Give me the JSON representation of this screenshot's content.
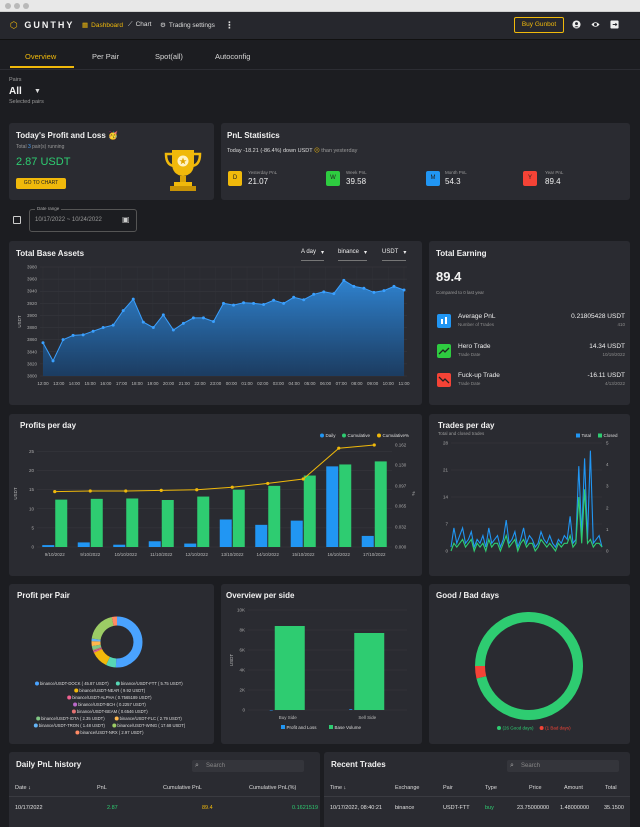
{
  "header": {
    "logo": "GUNTHY",
    "nav": [
      {
        "label": "Dashboard",
        "icon": "grid-icon"
      },
      {
        "label": "Chart",
        "icon": "chart-line-icon"
      },
      {
        "label": "Trading settings",
        "icon": "gear-icon"
      }
    ],
    "buy_label": "Buy Gunbot",
    "icons": [
      "user-icon",
      "eye-icon",
      "logout-icon"
    ]
  },
  "tabs": [
    "Overview",
    "Per Pair",
    "Spot(all)",
    "Autoconfig"
  ],
  "pairs": {
    "label": "Pairs",
    "value": "All",
    "sub": "Selected pairs"
  },
  "profit_loss": {
    "title": "Today's Profit and Loss",
    "emoji": "🥳",
    "subtitle_pre": "Total ",
    "subtitle_count": "3",
    "subtitle_post": " pair(s) running",
    "value": "2.87 USDT",
    "button": "GO TO CHART"
  },
  "pnl_stats": {
    "title": "PnL Statistics",
    "today_text": "Today -18.21 (-86.4%) down USDT",
    "today_suffix": "than yesterday",
    "items": [
      {
        "letter": "D",
        "label": "Yesterday PnL",
        "value": "21.07",
        "color": "#f0b90b"
      },
      {
        "letter": "W",
        "label": "Week PnL",
        "value": "39.58",
        "color": "#2ecc40"
      },
      {
        "letter": "M",
        "label": "Month PnL",
        "value": "54.3",
        "color": "#2196f3"
      },
      {
        "letter": "Y",
        "label": "Year PnL",
        "value": "89.4",
        "color": "#f44336"
      }
    ]
  },
  "date_range": {
    "label": "Date range",
    "value": "10/17/2022 ~ 10/24/2022"
  },
  "total_base": {
    "title": "Total Base Assets",
    "dropdowns": [
      "A day",
      "binance",
      "USDT"
    ]
  },
  "total_earning": {
    "title": "Total Earning",
    "value": "89.4",
    "sub": "Compared to 0 last year",
    "rows": [
      {
        "label": "Average PnL",
        "sub": "Number of Trades",
        "value": "0.21805428 USDT",
        "value2": "410",
        "color": "#2196f3",
        "icon": "chart-icon"
      },
      {
        "label": "Hero Trade",
        "sub": "Trade Date",
        "value": "14.34 USDT",
        "value2": "10/19/2022",
        "color": "#2ecc40",
        "icon": "trend-up-icon"
      },
      {
        "label": "Fuck-up Trade",
        "sub": "Trade Date",
        "value": "-16.11 USDT",
        "value2": "4/13/2022",
        "color": "#f44336",
        "icon": "trend-down-icon"
      }
    ]
  },
  "profits_day": {
    "title": "Profits per day"
  },
  "trades_day": {
    "title": "Trades per day",
    "sub": "Total and closed trades"
  },
  "profit_pair": {
    "title": "Profit per Pair"
  },
  "overview_side": {
    "title": "Overview per side"
  },
  "good_bad": {
    "title": "Good / Bad days"
  },
  "daily_history": {
    "title": "Daily PnL history",
    "search": "Search",
    "columns": [
      "Date",
      "PnL",
      "Cumulative PnL",
      "Cumulative PnL(%)"
    ],
    "rows": [
      [
        "10/17/2022",
        "2.87",
        "89.4",
        "0.1621519"
      ]
    ]
  },
  "recent_trades": {
    "title": "Recent Trades",
    "search": "Search",
    "columns": [
      "Time",
      "Exchange",
      "Pair",
      "Type",
      "Price",
      "Amount",
      "Total"
    ],
    "rows": [
      [
        "10/17/2022, 08:40:21",
        "binance",
        "USDT-FTT",
        "buy",
        "23.75000000",
        "1.48000000",
        "35.1500"
      ]
    ]
  },
  "chart_data": [
    {
      "type": "area",
      "title": "Total Base Assets",
      "xlabel": "",
      "ylabel": "USDT",
      "categories": [
        "12:00",
        "13:00",
        "14:00",
        "15:00",
        "16:00",
        "17:00",
        "18:00",
        "19:00",
        "20:00",
        "21:00",
        "22:00",
        "23:00",
        "00:00",
        "01:00",
        "02:00",
        "03:00",
        "04:00",
        "05:00",
        "06:00",
        "07:00",
        "08:00",
        "09:00",
        "10:00",
        "11:00"
      ],
      "x": [
        "11:40",
        "12:20",
        "13:00",
        "13:40",
        "14:20",
        "15:00",
        "15:40",
        "16:20",
        "17:00",
        "17:40",
        "18:20",
        "19:00",
        "19:40",
        "20:20",
        "21:00",
        "21:40",
        "22:20",
        "23:00",
        "23:40",
        "00:20",
        "01:00",
        "01:40",
        "02:20",
        "03:00",
        "03:40",
        "04:20",
        "05:00",
        "05:40",
        "06:00",
        "06:40",
        "07:20",
        "08:00",
        "08:40",
        "09:20",
        "10:00",
        "10:40",
        "11:20"
      ],
      "values": [
        3855,
        3825,
        3860,
        3867,
        3868,
        3874,
        3880,
        3884,
        3908,
        3927,
        3889,
        3880,
        3901,
        3876,
        3887,
        3896,
        3896,
        3890,
        3920,
        3917,
        3921,
        3920,
        3918,
        3925,
        3920,
        3930,
        3926,
        3935,
        3939,
        3936,
        3958,
        3948,
        3945,
        3938,
        3941,
        3948,
        3942
      ],
      "ylim": [
        3800,
        3980
      ],
      "yticks": [
        3800,
        3820,
        3840,
        3860,
        3880,
        3900,
        3920,
        3940,
        3960,
        3980
      ],
      "grid": true
    },
    {
      "type": "bar",
      "title": "Profits per day",
      "ylabel": "USDT",
      "y2label": "%",
      "categories": [
        "9/10/2022",
        "9/10/2022",
        "10/10/2022",
        "11/10/2022",
        "12/10/2022",
        "13/10/2022",
        "14/10/2022",
        "15/10/2022",
        "16/10/2022",
        "17/10/2022"
      ],
      "legend": "top-right",
      "series": [
        {
          "name": "Daily",
          "color": "#2196f3",
          "values": [
            0.5,
            1.2,
            0.6,
            1.5,
            0.9,
            7.2,
            5.8,
            6.9,
            21.1,
            2.9
          ]
        },
        {
          "name": "Cumulative",
          "color": "#2ecc71",
          "values": [
            12.4,
            12.6,
            12.7,
            12.3,
            13.2,
            15.0,
            16.0,
            18.7,
            21.6,
            22.4
          ]
        },
        {
          "name": "Cumulative%",
          "color": "#f0b90b",
          "type": "line",
          "axis": "right",
          "values": [
            0.088,
            0.089,
            0.089,
            0.09,
            0.091,
            0.095,
            0.101,
            0.108,
            0.157,
            0.162
          ]
        }
      ],
      "ylim": [
        0,
        28
      ],
      "yticks": [
        0,
        5,
        10,
        15,
        20,
        25
      ],
      "y2ticks": [
        0.0,
        0.032,
        0.065,
        0.097,
        0.13,
        0.162
      ]
    },
    {
      "type": "line",
      "title": "Trades per day",
      "subtitle": "Total and closed trades",
      "legend": "top-right",
      "series": [
        {
          "name": "Total",
          "color": "#2196f3",
          "values": [
            1,
            6,
            2,
            4,
            6,
            2,
            3,
            5,
            1,
            3,
            2,
            4,
            1,
            6,
            2,
            3,
            4,
            1,
            3,
            8,
            2,
            3,
            5,
            1,
            3,
            6,
            2,
            4,
            3,
            1,
            2,
            5,
            3,
            2,
            4,
            2,
            1,
            3,
            2,
            4,
            3,
            9,
            2,
            3,
            22,
            4,
            24,
            3,
            26,
            2,
            3,
            4,
            1
          ]
        },
        {
          "name": "Closed",
          "color": "#2ecc71",
          "values": [
            0,
            2,
            1,
            2,
            3,
            1,
            2,
            3,
            0,
            2,
            1,
            2,
            0,
            3,
            1,
            2,
            2,
            0,
            2,
            4,
            1,
            2,
            3,
            0,
            2,
            3,
            1,
            2,
            2,
            0,
            1,
            3,
            2,
            1,
            2,
            1,
            0,
            2,
            1,
            2,
            2,
            4,
            1,
            2,
            14,
            2,
            16,
            2,
            3,
            1,
            2,
            2,
            1
          ]
        }
      ],
      "ylim": [
        0,
        28
      ],
      "yticks": [
        0,
        7,
        14,
        21,
        28
      ],
      "y2ticks": [
        0,
        1,
        2,
        3,
        4,
        5
      ]
    },
    {
      "type": "pie",
      "title": "Profit per Pair",
      "legend": "bottom",
      "labels": [
        {
          "name": "binance/USDT-DOCK",
          "value": 45.87,
          "color": "#4aa3ff"
        },
        {
          "name": "binance/USDT-FTT",
          "value": 5.75,
          "color": "#57d7b5"
        },
        {
          "name": "binance/USDT-NEAR",
          "value": 9.92,
          "color": "#f0b90b"
        },
        {
          "name": "binance/USDT-ALPHA",
          "value": 0.7565,
          "color": "#f06292"
        },
        {
          "name": "binance/USDT-BCH",
          "value": 0.2257,
          "color": "#ba68c8"
        },
        {
          "name": "binance/USDT-BEAM",
          "value": 0.6546,
          "color": "#e57373"
        },
        {
          "name": "binance/USDT-IOTA",
          "value": 2.35,
          "color": "#81c784"
        },
        {
          "name": "binance/USDT-FLC",
          "value": 2.79,
          "color": "#ffb74d"
        },
        {
          "name": "binance/USDT-TRON",
          "value": 1.48,
          "color": "#64b5f6"
        },
        {
          "name": "binance/USDT-WING",
          "value": 17.68,
          "color": "#9ccc65"
        },
        {
          "name": "binance/USDT-NRX",
          "value": 2.97,
          "color": "#ff8a65"
        }
      ],
      "legend_text": [
        [
          "binance/USDT-DOCK ( 45.87 USDT)",
          "binance/USDT-FTT ( 5.75 USDT)"
        ],
        [
          "binance/USDT-NEAR ( 9.92 USDT)"
        ],
        [
          "binance/USDT-ALPHA ( 0.7565189 USDT)"
        ],
        [
          "binance/USDT-BCH ( 0.2257 USDT)"
        ],
        [
          "binance/USDT-BEAM ( 0.6546 USDT)"
        ],
        [
          "binance/USDT-IOTA ( 2.35 USDT)",
          "binance/USDT-FLC ( 2.79 USDT)"
        ],
        [
          "binance/USDT-TRON ( 1.48 USDT)",
          "binance/USDT-WING ( 17.68 USDT)"
        ],
        [
          "binance/USDT-NRX ( 2.97 USDT)"
        ]
      ]
    },
    {
      "type": "bar",
      "title": "Overview per side",
      "ylabel": "USDT",
      "categories": [
        "Buy Side",
        "Sell Side"
      ],
      "legend": "bottom",
      "series": [
        {
          "name": "Profit and Loss",
          "color": "#2196f3",
          "values": [
            0,
            80
          ]
        },
        {
          "name": "Base Volume",
          "color": "#2ecc71",
          "values": [
            8400,
            7700
          ]
        }
      ],
      "ylim": [
        0,
        10000
      ],
      "yticks": [
        "0",
        "2K",
        "4K",
        "6K",
        "8K",
        "10K"
      ]
    },
    {
      "type": "pie",
      "title": "Good / Bad days",
      "legend": "bottom",
      "labels": [
        {
          "name": "(26 Good days)",
          "value": 26,
          "color": "#2ecc71"
        },
        {
          "name": "(1 Bad days)",
          "value": 1,
          "color": "#f44336"
        }
      ]
    }
  ]
}
